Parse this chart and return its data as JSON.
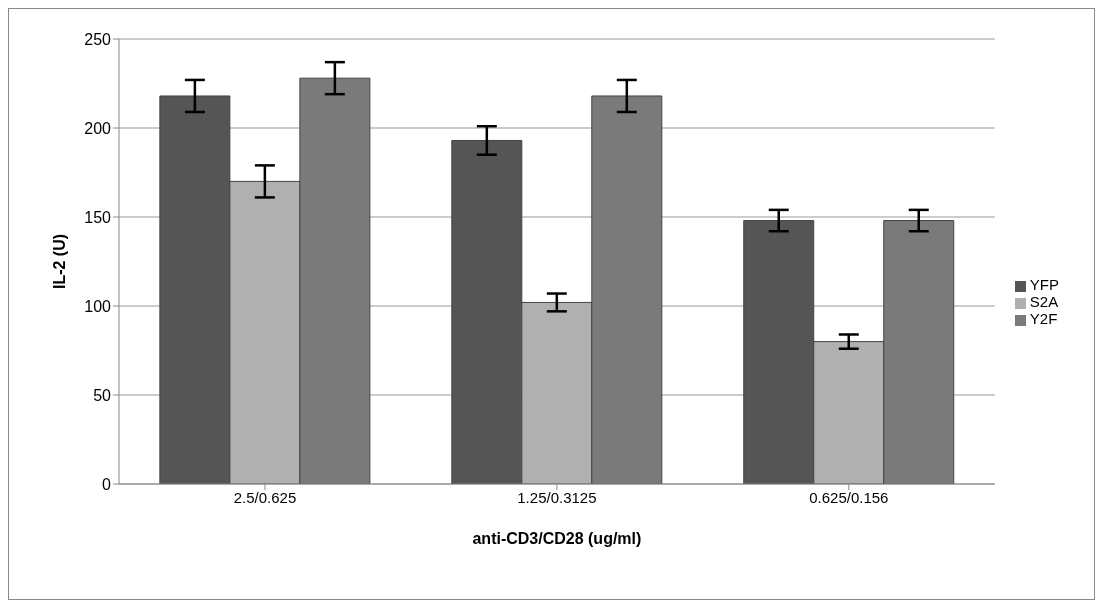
{
  "chart_data": {
    "type": "bar",
    "xlabel": "anti-CD3/CD28 (ug/ml)",
    "ylabel": "IL-2 (U)",
    "categories": [
      "2.5/0.625",
      "1.25/0.3125",
      "0.625/0.156"
    ],
    "series": [
      {
        "name": "YFP",
        "color": "#555555",
        "values": [
          218,
          193,
          148
        ],
        "errors": [
          9,
          8,
          6
        ]
      },
      {
        "name": "S2A",
        "color": "#b0b0b0",
        "values": [
          170,
          102,
          80
        ],
        "errors": [
          9,
          5,
          4
        ]
      },
      {
        "name": "Y2F",
        "color": "#7a7a7a",
        "values": [
          228,
          218,
          148
        ],
        "errors": [
          9,
          9,
          6
        ]
      }
    ],
    "ylim": [
      0,
      250
    ],
    "yticks": [
      0,
      50,
      100,
      150,
      200,
      250
    ],
    "grid": "y",
    "legend": "right"
  }
}
